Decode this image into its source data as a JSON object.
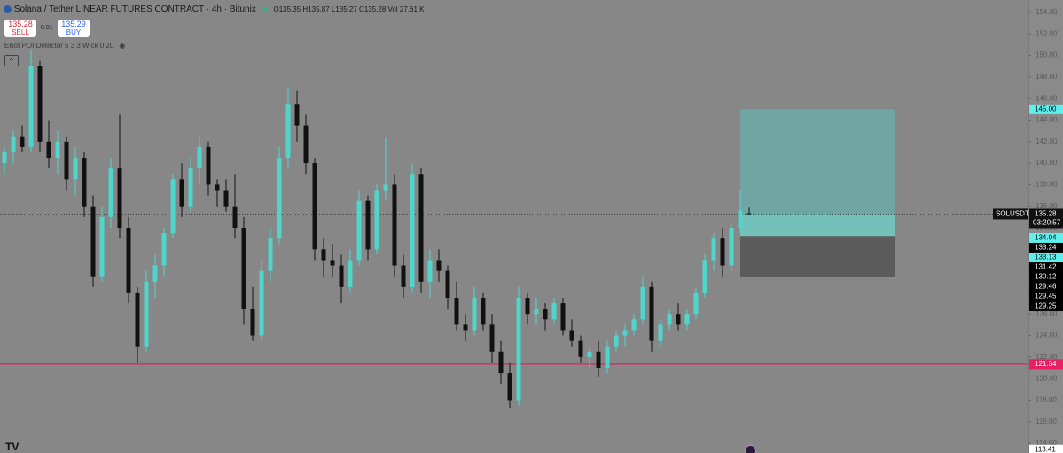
{
  "header": {
    "symbol": "Solana / Tether LINEAR FUTURES CONTRACT",
    "interval": "4h",
    "exchange": "Bitunix",
    "o_label": "O",
    "open": 135.35,
    "h_label": "H",
    "high": 135.87,
    "l_label": "L",
    "low": 135.27,
    "c_label": "C",
    "close": 135.28,
    "vol_label": "Vol",
    "volume": "27.61 K"
  },
  "trade": {
    "sell_price": 135.28,
    "sell_label": "SELL",
    "spread": 0.01,
    "buy_price": 135.29,
    "buy_label": "BUY"
  },
  "indicator": "Elliot POI Detector 5 3 3 Wick 0 20",
  "chart_data": {
    "type": "candlestick",
    "up_color": "#4fd6cc",
    "down_color": "#111111",
    "ylim": [
      113.1,
      155.15
    ],
    "yticks": [
      {
        "value": 114,
        "label": "114.00"
      },
      {
        "value": 116,
        "label": "116.00"
      },
      {
        "value": 118,
        "label": "118.00"
      },
      {
        "value": 120,
        "label": "120.00"
      },
      {
        "value": 122,
        "label": "122.00"
      },
      {
        "value": 124,
        "label": "124.00"
      },
      {
        "value": 126,
        "label": "126.00"
      },
      {
        "value": 128,
        "label": "128.00"
      },
      {
        "value": 130,
        "label": "130.00"
      },
      {
        "value": 132,
        "label": "132.00"
      },
      {
        "value": 134,
        "label": "134.00"
      },
      {
        "value": 136,
        "label": "136.00"
      },
      {
        "value": 138,
        "label": "138.00"
      },
      {
        "value": 140,
        "label": "140.00"
      },
      {
        "value": 142,
        "label": "142.00"
      },
      {
        "value": 144,
        "label": "144.00"
      },
      {
        "value": 146,
        "label": "146.00"
      },
      {
        "value": 148,
        "label": "148.00"
      },
      {
        "value": 150,
        "label": "150.00"
      },
      {
        "value": 152,
        "label": "152.00"
      },
      {
        "value": 154,
        "label": "154.00"
      }
    ],
    "candles": [
      [
        140,
        141.5,
        139,
        141
      ],
      [
        141,
        143,
        140,
        142.5
      ],
      [
        142.5,
        143.5,
        141,
        141.5
      ],
      [
        141.5,
        150.6,
        141,
        149
      ],
      [
        149,
        149.5,
        141,
        142
      ],
      [
        142,
        144,
        139.5,
        140.5
      ],
      [
        140.5,
        143,
        139,
        142
      ],
      [
        142,
        142.5,
        137.5,
        138.5
      ],
      [
        138.5,
        141.5,
        137,
        140.5
      ],
      [
        140.5,
        141,
        135,
        136
      ],
      [
        136,
        137,
        128.5,
        129.5
      ],
      [
        129.5,
        136,
        129,
        135
      ],
      [
        135,
        140.5,
        134,
        139.5
      ],
      [
        139.5,
        144.5,
        133,
        134
      ],
      [
        134,
        135,
        127,
        128
      ],
      [
        128,
        128.5,
        121.5,
        123
      ],
      [
        123,
        130,
        122.5,
        129
      ],
      [
        129,
        131.5,
        127.5,
        130.5
      ],
      [
        130.5,
        134,
        129.5,
        133.5
      ],
      [
        133.5,
        139,
        133,
        138.5
      ],
      [
        138.5,
        140,
        135,
        136
      ],
      [
        136,
        140.5,
        135.5,
        139.5
      ],
      [
        139.5,
        142.5,
        138,
        141.5
      ],
      [
        141.5,
        142,
        137,
        138
      ],
      [
        138,
        138.5,
        136,
        137.5
      ],
      [
        137.5,
        138.5,
        135.5,
        136
      ],
      [
        136,
        139,
        133,
        134
      ],
      [
        134,
        135,
        125,
        126.5
      ],
      [
        126.5,
        128.5,
        123.5,
        124
      ],
      [
        124,
        131,
        123.5,
        130
      ],
      [
        130,
        134,
        129,
        133
      ],
      [
        133,
        141.5,
        132.5,
        140.5
      ],
      [
        140.5,
        147,
        139.5,
        145.5
      ],
      [
        145.5,
        146.7,
        142,
        143.5
      ],
      [
        143.5,
        144.5,
        139,
        140
      ],
      [
        140,
        140.5,
        131,
        132
      ],
      [
        132,
        133,
        129.5,
        131
      ],
      [
        131,
        132.5,
        129.5,
        130.5
      ],
      [
        130.5,
        131.5,
        127,
        128.5
      ],
      [
        128.5,
        132,
        128,
        131
      ],
      [
        131,
        137.5,
        130.5,
        136.5
      ],
      [
        136.5,
        137,
        131,
        132
      ],
      [
        132,
        138,
        131.5,
        137.5
      ],
      [
        137.5,
        142.4,
        136.5,
        138
      ],
      [
        138,
        139,
        129.5,
        130.5
      ],
      [
        130.5,
        131.5,
        127.5,
        128.5
      ],
      [
        128.5,
        140,
        128,
        139
      ],
      [
        139,
        139.5,
        128,
        129
      ],
      [
        129,
        132,
        127.5,
        131
      ],
      [
        131,
        132,
        129,
        130
      ],
      [
        130,
        130.5,
        126.5,
        127.5
      ],
      [
        127.5,
        129,
        124.5,
        125
      ],
      [
        125,
        126,
        123.5,
        124.5
      ],
      [
        124.5,
        128.5,
        124,
        127.5
      ],
      [
        127.5,
        128,
        124.5,
        125
      ],
      [
        125,
        126,
        121.5,
        122.5
      ],
      [
        122.5,
        123.5,
        119.5,
        120.5
      ],
      [
        120.5,
        121.5,
        117.3,
        118
      ],
      [
        118,
        128.5,
        117.5,
        127.5
      ],
      [
        127.5,
        128,
        125,
        126
      ],
      [
        126,
        127.5,
        125,
        126.5
      ],
      [
        126.5,
        127,
        124.5,
        125.5
      ],
      [
        125.5,
        127.5,
        125,
        127
      ],
      [
        127,
        127.5,
        124,
        124.5
      ],
      [
        124.5,
        125.5,
        123,
        123.5
      ],
      [
        123.5,
        124,
        121.5,
        122
      ],
      [
        122,
        123,
        121,
        122.5
      ],
      [
        122.5,
        123.5,
        120.2,
        121
      ],
      [
        121,
        123.5,
        120.5,
        123
      ],
      [
        123,
        124.5,
        122.5,
        124
      ],
      [
        124,
        125,
        123,
        124.5
      ],
      [
        124.5,
        126,
        124,
        125.5
      ],
      [
        125.5,
        129.5,
        125,
        128.5
      ],
      [
        128.5,
        129,
        122.5,
        123.5
      ],
      [
        123.5,
        125.5,
        123,
        125
      ],
      [
        125,
        126.5,
        124.5,
        126
      ],
      [
        126,
        127,
        124.5,
        125
      ],
      [
        125,
        126.5,
        124.5,
        126
      ],
      [
        126,
        128.5,
        125.5,
        128
      ],
      [
        128,
        131.5,
        127.5,
        131
      ],
      [
        131,
        133.5,
        130,
        133
      ],
      [
        133,
        134,
        129.5,
        130.5
      ],
      [
        130.5,
        134.5,
        130,
        134
      ],
      [
        134,
        137.5,
        133.5,
        135.6
      ],
      [
        135.35,
        135.87,
        135.27,
        135.28
      ]
    ],
    "hline": {
      "value": 121.34,
      "color": "#e91e63"
    },
    "position": {
      "target": 145,
      "entry": 133.24,
      "stop": 129.46
    },
    "current": {
      "symbol": "SOLUSDT.P",
      "value": 135.28,
      "label": "135.28",
      "countdown": "03:20:57"
    },
    "price_labels": [
      {
        "value": 145,
        "label": "145.00",
        "color": "#5ff0ee"
      },
      {
        "value": 134.04,
        "label": "134.04",
        "color": "#5ff0ee"
      },
      {
        "value": 133.24,
        "label": "133.24",
        "color": "#000000"
      },
      {
        "value": 133.13,
        "label": "133.13",
        "color": "#5ff0ee"
      },
      {
        "value": 131.42,
        "label": "131.42",
        "color": "#000000"
      },
      {
        "value": 130.12,
        "label": "130.12",
        "color": "#000000"
      },
      {
        "value": 129.46,
        "label": "129.46",
        "color": "#000000"
      },
      {
        "value": 129.45,
        "label": "129.45",
        "color": "#000000"
      },
      {
        "value": 129.25,
        "label": "129.25",
        "color": "#000000"
      },
      {
        "value": 121.34,
        "label": "121.34",
        "color": "#e91e63"
      },
      {
        "value": 113.41,
        "label": "113.41",
        "color": "#ffffff"
      }
    ]
  }
}
